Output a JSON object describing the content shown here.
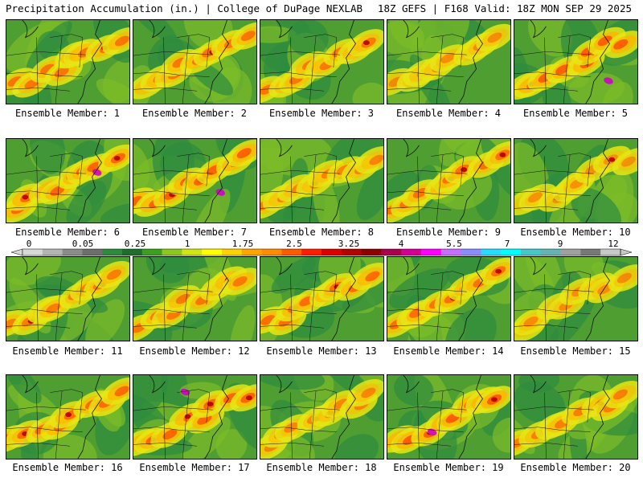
{
  "header": {
    "title": "Precipitation Accumulation (in.) | College of DuPage NEXLAB",
    "valid": "18Z GEFS | F168 Valid: 18Z MON SEP 29 2025"
  },
  "members": [
    {
      "label": "Ensemble Member: 1",
      "intensity": 0.72
    },
    {
      "label": "Ensemble Member: 2",
      "intensity": 0.72
    },
    {
      "label": "Ensemble Member: 3",
      "intensity": 0.7
    },
    {
      "label": "Ensemble Member: 4",
      "intensity": 0.55
    },
    {
      "label": "Ensemble Member: 5",
      "intensity": 0.9
    },
    {
      "label": "Ensemble Member: 6",
      "intensity": 0.85
    },
    {
      "label": "Ensemble Member: 7",
      "intensity": 0.88
    },
    {
      "label": "Ensemble Member: 8",
      "intensity": 0.62
    },
    {
      "label": "Ensemble Member: 9",
      "intensity": 0.75
    },
    {
      "label": "Ensemble Member: 10",
      "intensity": 0.5
    },
    {
      "label": "Ensemble Member: 11",
      "intensity": 0.65
    },
    {
      "label": "Ensemble Member: 12",
      "intensity": 0.7
    },
    {
      "label": "Ensemble Member: 13",
      "intensity": 0.78
    },
    {
      "label": "Ensemble Member: 14",
      "intensity": 0.75
    },
    {
      "label": "Ensemble Member: 15",
      "intensity": 0.55
    },
    {
      "label": "Ensemble Member: 16",
      "intensity": 0.8
    },
    {
      "label": "Ensemble Member: 17",
      "intensity": 0.85
    },
    {
      "label": "Ensemble Member: 18",
      "intensity": 0.6
    },
    {
      "label": "Ensemble Member: 19",
      "intensity": 0.92
    },
    {
      "label": "Ensemble Member: 20",
      "intensity": 0.65
    }
  ],
  "legend": {
    "tick_labels": [
      "0",
      "0.05",
      "0.25",
      "1",
      "1.75",
      "2.5",
      "3.25",
      "4",
      "5.5",
      "7",
      "9",
      "12"
    ],
    "colors": [
      "#d8d8d8",
      "#b4b4b4",
      "#8c8c8c",
      "#6e6e6e",
      "#2e8b3e",
      "#1f6e2e",
      "#3ca01e",
      "#8cc81e",
      "#d2e614",
      "#ffff00",
      "#ffd200",
      "#ffa500",
      "#ff8c00",
      "#ff5a00",
      "#ff1e00",
      "#dc0000",
      "#b40000",
      "#8c0000",
      "#aa0050",
      "#d20096",
      "#ff00ff",
      "#c86eff",
      "#8c8cff",
      "#28dcff",
      "#00ffff",
      "#46c8c8",
      "#64b4b4",
      "#a0a0a0",
      "#787878",
      "#c8c8c8"
    ]
  }
}
